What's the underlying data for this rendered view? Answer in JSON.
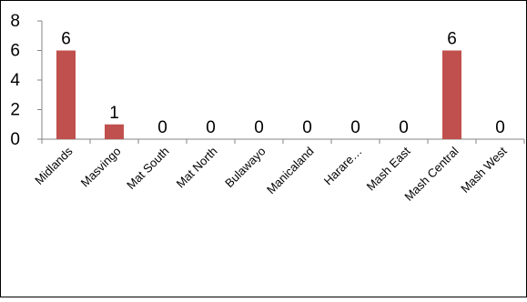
{
  "chart_data": {
    "type": "bar",
    "title": "",
    "xlabel": "",
    "ylabel": "",
    "categories": [
      "Midlands",
      "Masvingo",
      "Mat South",
      "Mat North",
      "Bulawayo",
      "Manicaland",
      "Harare…",
      "Mash East",
      "Mash Central",
      "Mash West"
    ],
    "values": [
      6,
      1,
      0,
      0,
      0,
      0,
      0,
      0,
      6,
      0
    ],
    "ylim": [
      0,
      8
    ],
    "yticks": [
      0,
      2,
      4,
      6,
      8
    ],
    "grid": false,
    "legend": "none",
    "data_labels": true,
    "bar_color": "#C0504D"
  }
}
